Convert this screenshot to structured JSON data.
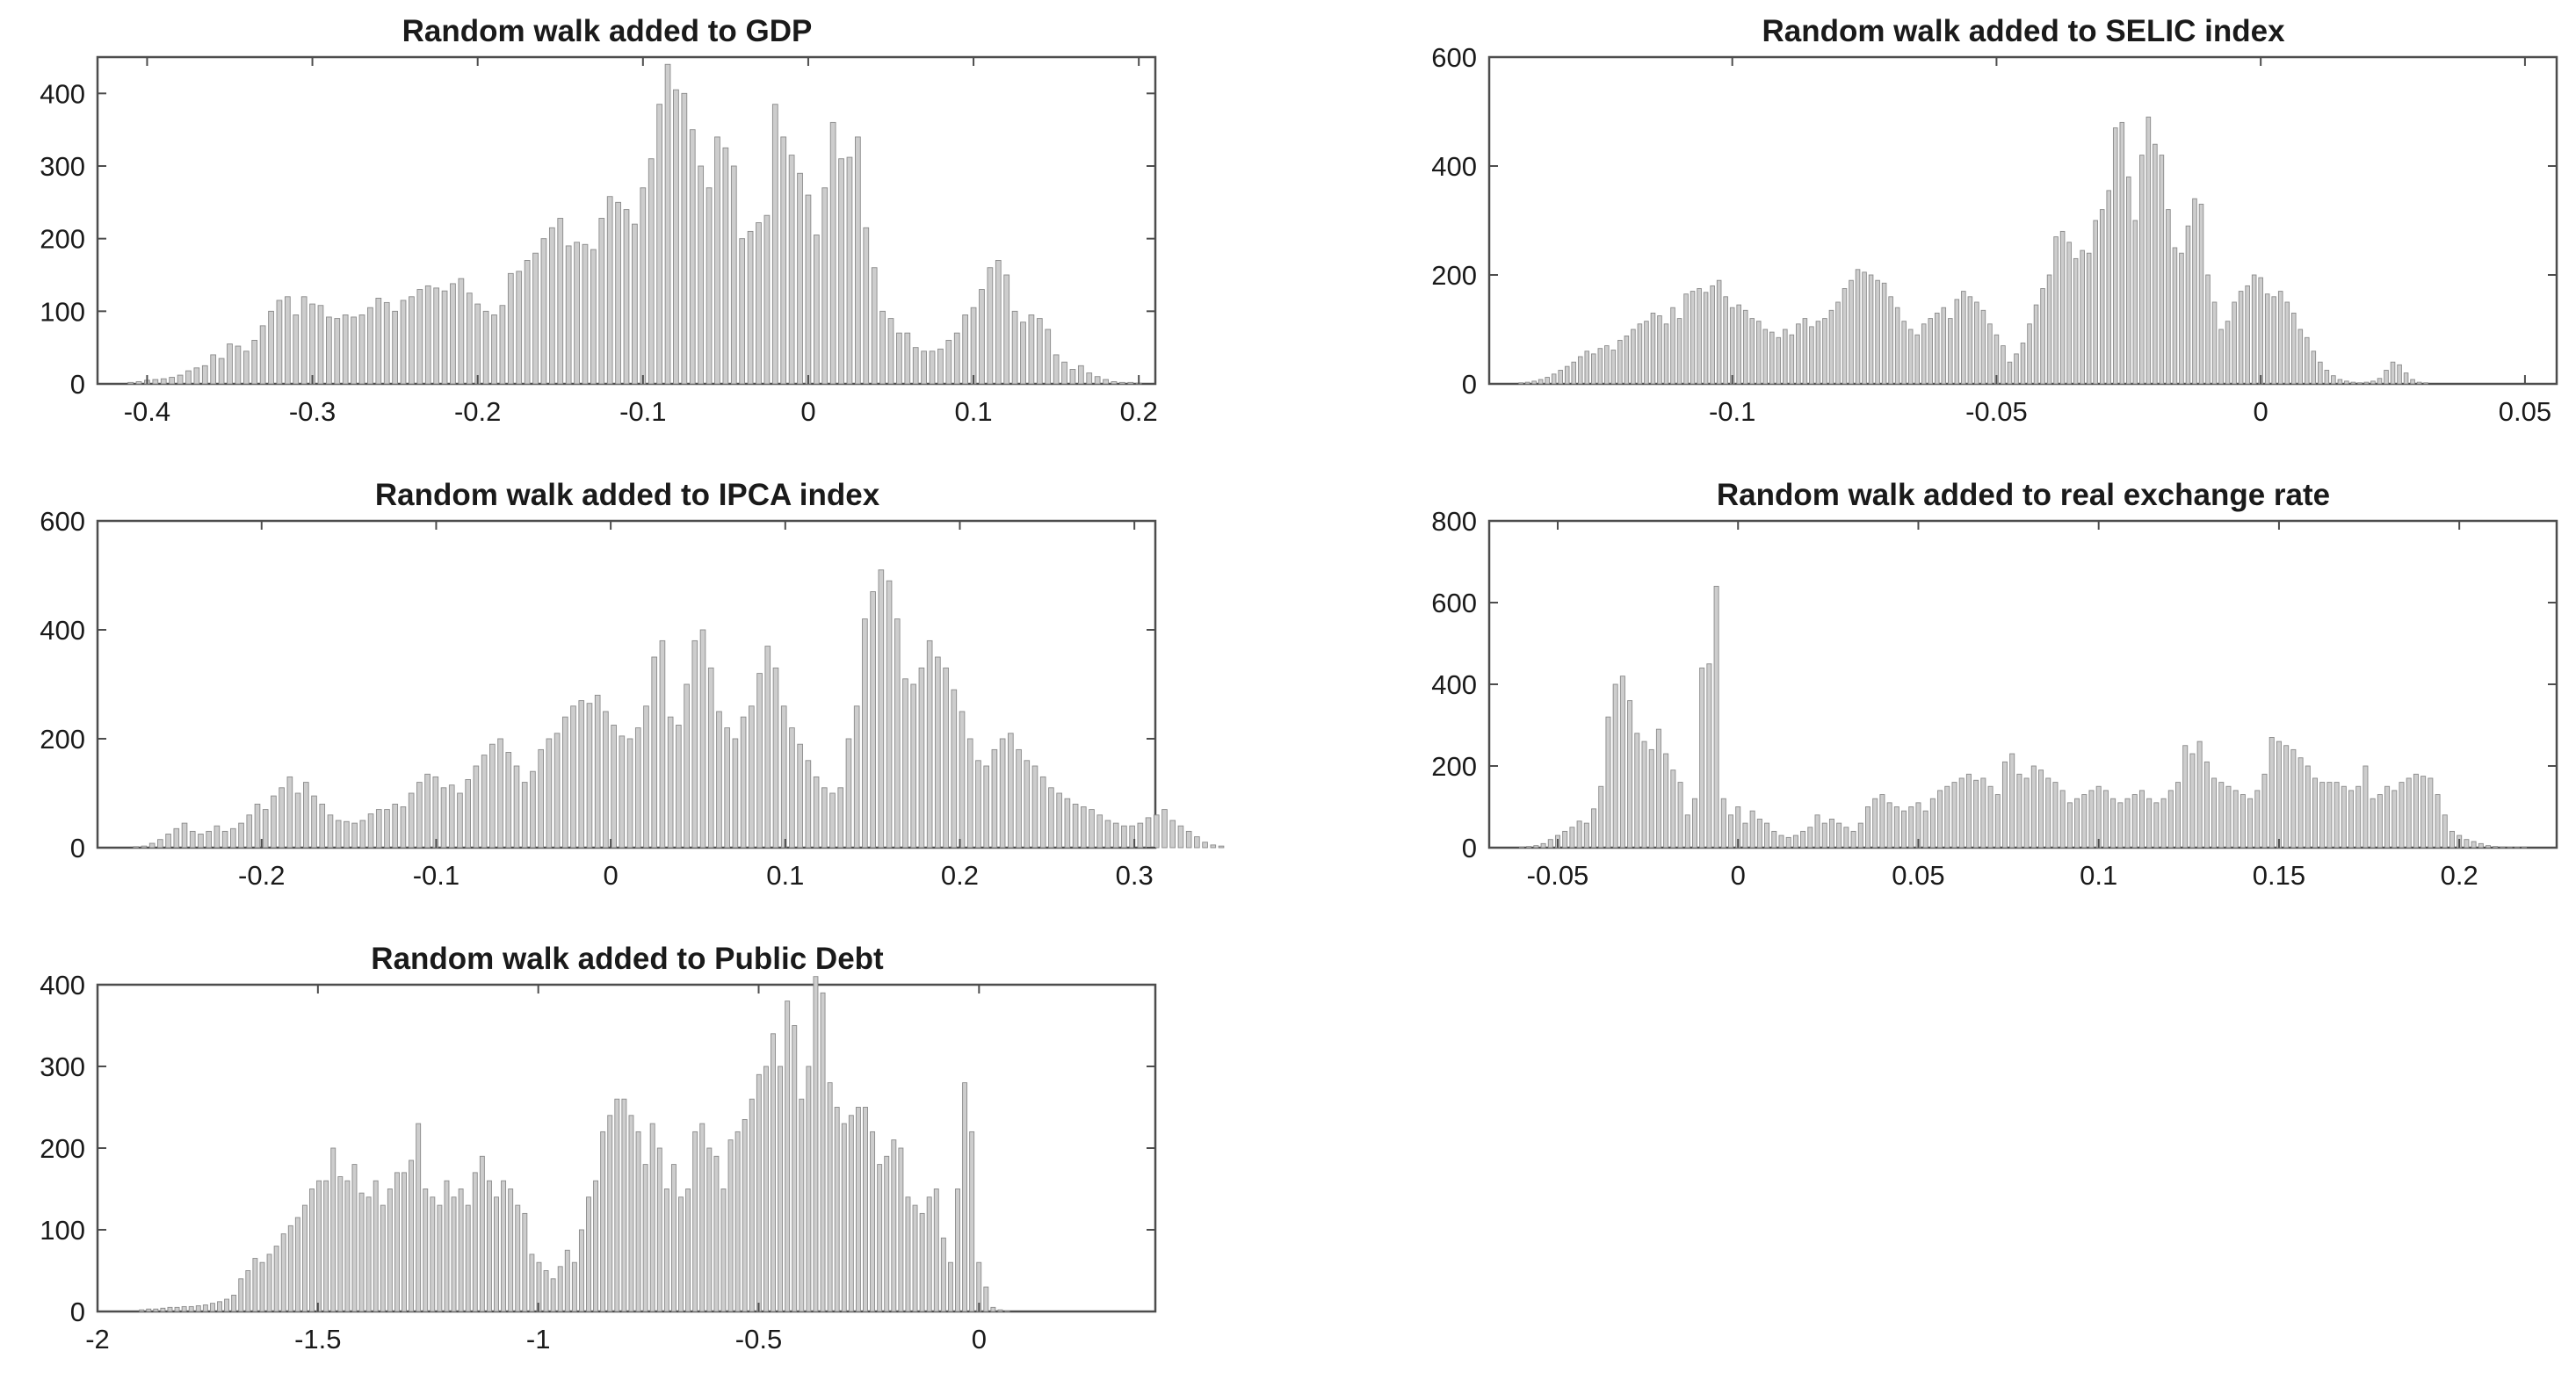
{
  "figure_description_tag": "histograms",
  "chart_data": [
    {
      "type": "bar",
      "title": "Random walk added to GDP",
      "xlabel": "",
      "ylabel": "",
      "xlim": [
        -0.43,
        0.21
      ],
      "ylim": [
        0,
        450
      ],
      "xticks": [
        -0.4,
        -0.3,
        -0.2,
        -0.1,
        0,
        0.1,
        0.2
      ],
      "xtick_labels": [
        "-0.4",
        "-0.3",
        "-0.2",
        "-0.1",
        "0",
        "0.1",
        "0.2"
      ],
      "yticks": [
        0,
        100,
        200,
        300,
        400
      ],
      "ytick_labels": [
        "0",
        "100",
        "200",
        "300",
        "400"
      ],
      "x_start": -0.41,
      "x_step": 0.005,
      "values": [
        2,
        3,
        5,
        6,
        7,
        9,
        12,
        18,
        22,
        25,
        40,
        35,
        55,
        52,
        45,
        60,
        80,
        100,
        115,
        120,
        95,
        120,
        110,
        108,
        92,
        90,
        95,
        92,
        95,
        105,
        118,
        112,
        100,
        115,
        120,
        130,
        135,
        132,
        128,
        138,
        145,
        125,
        110,
        100,
        95,
        108,
        152,
        155,
        170,
        180,
        200,
        215,
        228,
        190,
        195,
        192,
        185,
        228,
        258,
        250,
        240,
        220,
        270,
        310,
        385,
        440,
        405,
        400,
        350,
        300,
        270,
        340,
        325,
        300,
        200,
        210,
        222,
        232,
        385,
        340,
        315,
        290,
        260,
        205,
        270,
        360,
        310,
        312,
        340,
        215,
        160,
        100,
        90,
        70,
        70,
        50,
        45,
        45,
        48,
        60,
        70,
        95,
        105,
        130,
        160,
        170,
        150,
        100,
        85,
        95,
        90,
        75,
        40,
        30,
        20,
        25,
        15,
        10,
        6,
        3,
        2,
        2,
        1
      ]
    },
    {
      "type": "bar",
      "title": "Random walk added to SELIC index",
      "xlabel": "",
      "ylabel": "",
      "xlim": [
        -0.146,
        0.056
      ],
      "ylim": [
        0,
        600
      ],
      "xticks": [
        -0.1,
        -0.05,
        0,
        0.05
      ],
      "xtick_labels": [
        "-0.1",
        "-0.05",
        "0",
        "0.05"
      ],
      "yticks": [
        0,
        200,
        400,
        600
      ],
      "ytick_labels": [
        "0",
        "200",
        "400",
        "600"
      ],
      "x_start": -0.14,
      "x_step": 0.00125,
      "values": [
        2,
        3,
        5,
        8,
        12,
        18,
        25,
        32,
        40,
        50,
        60,
        55,
        65,
        70,
        62,
        80,
        88,
        100,
        110,
        115,
        130,
        125,
        110,
        140,
        120,
        165,
        170,
        175,
        168,
        180,
        190,
        160,
        140,
        145,
        135,
        120,
        115,
        100,
        95,
        85,
        100,
        90,
        110,
        120,
        105,
        115,
        120,
        135,
        150,
        175,
        190,
        210,
        205,
        200,
        190,
        185,
        160,
        140,
        115,
        100,
        90,
        110,
        120,
        130,
        140,
        120,
        155,
        170,
        160,
        150,
        135,
        110,
        90,
        70,
        40,
        55,
        75,
        110,
        145,
        175,
        200,
        270,
        280,
        260,
        230,
        245,
        240,
        300,
        320,
        355,
        470,
        480,
        380,
        300,
        420,
        490,
        440,
        420,
        320,
        250,
        240,
        290,
        340,
        330,
        200,
        150,
        100,
        115,
        150,
        170,
        180,
        200,
        195,
        165,
        160,
        170,
        150,
        130,
        100,
        85,
        60,
        40,
        25,
        15,
        8,
        5,
        3,
        2,
        3,
        5,
        10,
        25,
        40,
        35,
        20,
        8,
        3,
        2
      ]
    },
    {
      "type": "bar",
      "title": "Random walk added to IPCA index",
      "xlabel": "",
      "ylabel": "",
      "xlim": [
        -0.294,
        0.312
      ],
      "ylim": [
        0,
        600
      ],
      "xticks": [
        -0.2,
        -0.1,
        0,
        0.1,
        0.2,
        0.3
      ],
      "xtick_labels": [
        "-0.2",
        "-0.1",
        "0",
        "0.1",
        "0.2",
        "0.3"
      ],
      "yticks": [
        0,
        200,
        400,
        600
      ],
      "ytick_labels": [
        "0",
        "200",
        "400",
        "600"
      ],
      "x_start": -0.272,
      "x_step": 0.00464,
      "values": [
        2,
        3,
        8,
        15,
        25,
        35,
        45,
        30,
        25,
        30,
        40,
        30,
        35,
        45,
        60,
        80,
        70,
        95,
        110,
        130,
        100,
        120,
        95,
        80,
        60,
        50,
        48,
        45,
        50,
        62,
        70,
        70,
        80,
        75,
        100,
        120,
        135,
        130,
        110,
        115,
        100,
        125,
        150,
        170,
        190,
        200,
        175,
        150,
        120,
        140,
        180,
        200,
        210,
        240,
        260,
        270,
        265,
        280,
        250,
        225,
        205,
        200,
        220,
        260,
        350,
        380,
        240,
        225,
        300,
        380,
        400,
        330,
        250,
        220,
        200,
        240,
        260,
        320,
        370,
        330,
        260,
        220,
        190,
        160,
        130,
        110,
        100,
        110,
        200,
        260,
        420,
        470,
        510,
        490,
        420,
        310,
        300,
        330,
        380,
        350,
        330,
        290,
        250,
        200,
        160,
        150,
        180,
        200,
        210,
        180,
        160,
        150,
        130,
        110,
        100,
        90,
        80,
        75,
        70,
        60,
        50,
        45,
        40,
        40,
        45,
        55,
        60,
        70,
        50,
        40,
        30,
        20,
        10,
        5,
        3
      ]
    },
    {
      "type": "bar",
      "title": "Random walk added to real exchange rate",
      "xlabel": "",
      "ylabel": "",
      "xlim": [
        -0.069,
        0.227
      ],
      "ylim": [
        0,
        800
      ],
      "xticks": [
        -0.05,
        0,
        0.05,
        0.1,
        0.15,
        0.2
      ],
      "xtick_labels": [
        "-0.05",
        "0",
        "0.05",
        "0.1",
        "0.15",
        "0.2"
      ],
      "yticks": [
        0,
        200,
        400,
        600,
        800
      ],
      "ytick_labels": [
        "0",
        "200",
        "400",
        "600",
        "800"
      ],
      "x_start": -0.06,
      "x_step": 0.002,
      "values": [
        2,
        3,
        5,
        10,
        20,
        30,
        40,
        50,
        65,
        60,
        95,
        150,
        320,
        400,
        420,
        360,
        280,
        260,
        240,
        290,
        230,
        190,
        160,
        80,
        120,
        440,
        450,
        640,
        120,
        80,
        100,
        60,
        90,
        70,
        60,
        40,
        30,
        25,
        30,
        40,
        50,
        80,
        60,
        70,
        60,
        50,
        40,
        60,
        100,
        120,
        130,
        110,
        100,
        90,
        100,
        110,
        90,
        120,
        140,
        150,
        160,
        170,
        180,
        165,
        170,
        150,
        130,
        210,
        230,
        180,
        170,
        200,
        190,
        170,
        160,
        140,
        110,
        120,
        130,
        140,
        150,
        140,
        120,
        110,
        120,
        130,
        140,
        120,
        110,
        120,
        140,
        160,
        250,
        230,
        260,
        210,
        170,
        160,
        150,
        140,
        130,
        120,
        140,
        180,
        270,
        260,
        250,
        240,
        220,
        200,
        170,
        160,
        160,
        160,
        150,
        140,
        150,
        200,
        120,
        130,
        150,
        140,
        160,
        170,
        180,
        175,
        170,
        130,
        80,
        40,
        30,
        20,
        15,
        10,
        5,
        3,
        2,
        1,
        1,
        2
      ]
    },
    {
      "type": "bar",
      "title": "Random walk added to Public Debt",
      "xlabel": "",
      "ylabel": "",
      "xlim": [
        -2.0,
        0.4
      ],
      "ylim": [
        0,
        400
      ],
      "xticks": [
        -2,
        -1.5,
        -1,
        -0.5,
        0
      ],
      "xtick_labels": [
        "-2",
        "-1.5",
        "-1",
        "-0.5",
        "0"
      ],
      "yticks": [
        0,
        100,
        200,
        300,
        400
      ],
      "ytick_labels": [
        "0",
        "100",
        "200",
        "300",
        "400"
      ],
      "x_start": -1.9,
      "x_step": 0.0161,
      "values": [
        2,
        3,
        3,
        4,
        5,
        5,
        6,
        6,
        7,
        8,
        10,
        12,
        15,
        20,
        40,
        50,
        65,
        60,
        70,
        80,
        95,
        105,
        115,
        130,
        150,
        160,
        160,
        200,
        165,
        160,
        180,
        145,
        140,
        160,
        130,
        150,
        170,
        170,
        185,
        230,
        150,
        140,
        130,
        160,
        140,
        150,
        130,
        170,
        190,
        160,
        140,
        160,
        150,
        130,
        120,
        70,
        60,
        50,
        40,
        55,
        75,
        60,
        100,
        140,
        160,
        220,
        240,
        260,
        260,
        240,
        220,
        180,
        230,
        200,
        150,
        180,
        140,
        150,
        220,
        230,
        200,
        190,
        150,
        210,
        220,
        235,
        260,
        290,
        300,
        340,
        300,
        380,
        350,
        260,
        300,
        410,
        390,
        280,
        250,
        230,
        240,
        250,
        250,
        220,
        180,
        190,
        210,
        200,
        140,
        130,
        120,
        140,
        150,
        90,
        60,
        150,
        280,
        220,
        60,
        30,
        5,
        2,
        1
      ]
    }
  ]
}
